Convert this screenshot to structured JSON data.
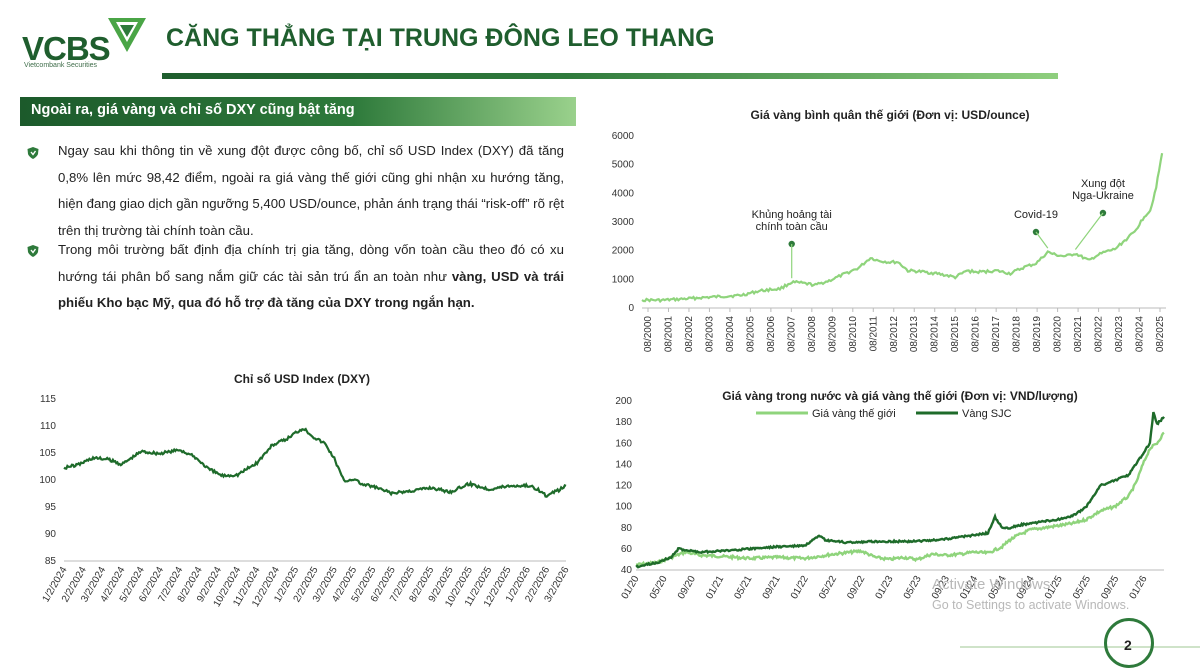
{
  "header": {
    "logo": "VCBS",
    "logo_sub": "Vietcombank Securities",
    "title": "CĂNG THẲNG TẠI TRUNG ĐÔNG LEO THANG"
  },
  "section": {
    "title": "Ngoài ra, giá vàng và chỉ số DXY cũng bật tăng",
    "para1": "Ngay sau khi thông tin về xung đột được công bố, chỉ số USD Index (DXY) đã tăng 0,8% lên mức 98,42 điểm, ngoài ra giá vàng thế giới cũng ghi nhận xu hướng tăng, hiện đang giao dịch gần ngưỡng 5,400 USD/ounce, phản ánh trạng thái “risk-off” rõ rệt trên thị trường tài chính toàn cầu.",
    "para2_a": "Trong môi trường bất định địa chính trị gia tăng, dòng vốn toàn cầu theo đó có xu hướng tái phân bổ sang nắm giữ các tài sản trú ẩn an toàn như ",
    "para2_b": "vàng, USD và trái phiếu Kho bạc Mỹ, qua đó hỗ trợ đà tăng của DXY trong ngắn hạn.",
    "bullet_icon": "shield-icon"
  },
  "colors": {
    "dark_green": "#1f5e2e",
    "light_green": "#8fd47c",
    "sjc_green": "#1e6b2a"
  },
  "chart_data": [
    {
      "id": "gold_world",
      "type": "line",
      "title": "Giá vàng bình quân thế giới (Đơn vị: USD/ounce)",
      "yticks": [
        0,
        1000,
        2000,
        3000,
        4000,
        5000,
        6000
      ],
      "ylim": [
        0,
        6000
      ],
      "xlabels": [
        "08/2000",
        "08/2001",
        "08/2002",
        "08/2003",
        "08/2004",
        "08/2005",
        "08/2006",
        "08/2007",
        "08/2008",
        "08/2009",
        "08/2010",
        "08/2011",
        "08/2012",
        "08/2013",
        "08/2014",
        "08/2015",
        "08/2016",
        "08/2017",
        "08/2018",
        "08/2019",
        "08/2020",
        "08/2021",
        "08/2022",
        "08/2023",
        "08/2024",
        "08/2025"
      ],
      "xlim": [
        2000.0,
        2026.6
      ],
      "x": [
        2000.0,
        2001.0,
        2002.0,
        2003.0,
        2004.0,
        2005.0,
        2006.0,
        2006.5,
        2007.0,
        2007.6,
        2008.0,
        2008.3,
        2008.8,
        2009.5,
        2010.0,
        2010.5,
        2011.0,
        2011.6,
        2012.0,
        2012.5,
        2013.0,
        2013.5,
        2014.0,
        2015.0,
        2015.9,
        2016.5,
        2017.0,
        2018.0,
        2018.7,
        2019.0,
        2019.5,
        2020.0,
        2020.6,
        2021.0,
        2021.5,
        2022.0,
        2022.7,
        2023.0,
        2023.5,
        2024.0,
        2024.5,
        2025.0,
        2025.5,
        2025.8,
        2026.1,
        2026.4
      ],
      "y": [
        280,
        270,
        310,
        360,
        400,
        440,
        600,
        640,
        670,
        900,
        880,
        850,
        800,
        950,
        1100,
        1250,
        1400,
        1750,
        1650,
        1600,
        1600,
        1300,
        1280,
        1200,
        1070,
        1300,
        1250,
        1300,
        1200,
        1300,
        1450,
        1550,
        1950,
        1850,
        1800,
        1900,
        1650,
        1800,
        1950,
        2050,
        2350,
        2650,
        3200,
        3400,
        4200,
        5400
      ],
      "annotations": [
        {
          "text": "Khủng hoảng tài chính toàn cầu",
          "x": 2007.6,
          "y": 900
        },
        {
          "text": "Covid-19",
          "x": 2020.6,
          "y": 1950
        },
        {
          "text": "Xung đột Nga-Ukraine",
          "x": 2022.0,
          "y": 1900
        }
      ]
    },
    {
      "id": "dxy",
      "type": "line",
      "title": "Chỉ số USD Index (DXY)",
      "yticks": [
        85,
        90,
        95,
        100,
        105,
        110,
        115
      ],
      "ylim": [
        85,
        115
      ],
      "xlabels": [
        "1/2/2024",
        "2/2/2024",
        "3/2/2024",
        "4/2/2024",
        "5/2/2024",
        "6/2/2024",
        "7/2/2024",
        "8/2/2024",
        "9/2/2024",
        "10/2/2024",
        "11/2/2024",
        "12/2/2024",
        "1/2/2025",
        "2/2/2025",
        "3/2/2025",
        "4/2/2025",
        "5/2/2025",
        "6/2/2025",
        "7/2/2025",
        "8/2/2025",
        "9/2/2025",
        "10/2/2025",
        "11/2/2025",
        "12/2/2025",
        "1/2/2026",
        "2/2/2026",
        "3/2/2026"
      ],
      "xlim": [
        0,
        26
      ],
      "x": [
        0,
        0.7,
        1.5,
        2.3,
        3,
        4,
        5,
        6,
        6.8,
        7.5,
        8.2,
        9,
        10,
        10.8,
        11.5,
        12,
        12.4,
        13,
        13.5,
        14,
        14.5,
        15,
        15.5,
        16,
        17,
        18,
        19,
        20,
        21,
        22,
        23,
        24,
        24.5,
        25,
        25.5,
        26
      ],
      "y": [
        102.3,
        102.8,
        104.1,
        103.8,
        102.9,
        105.3,
        104.9,
        105.6,
        104.2,
        102.0,
        100.8,
        101.0,
        103.2,
        106.5,
        107.5,
        108.8,
        109.6,
        107.8,
        106.8,
        104.0,
        99.8,
        100.2,
        99.1,
        98.8,
        97.5,
        98.0,
        98.6,
        97.8,
        99.3,
        98.3,
        98.9,
        99.0,
        98.4,
        97.0,
        97.9,
        98.9
      ]
    },
    {
      "id": "gold_domestic",
      "type": "line",
      "title": "Giá vàng trong nước và giá vàng thế giới (Đơn vị: VND/lượng)",
      "yticks": [
        40,
        60,
        80,
        100,
        120,
        140,
        160,
        180,
        200
      ],
      "ylim": [
        40,
        200
      ],
      "xlabels": [
        "01/20",
        "05/20",
        "09/20",
        "01/21",
        "05/21",
        "09/21",
        "01/22",
        "05/22",
        "09/22",
        "01/23",
        "05/23",
        "09/23",
        "01/24",
        "05/24",
        "09/24",
        "01/25",
        "05/25",
        "09/25",
        "01/26"
      ],
      "xlim": [
        0,
        75
      ],
      "series": [
        {
          "name": "Giá vàng thế giới",
          "color": "#8fd47c",
          "x": [
            0,
            3,
            5,
            7,
            9,
            12,
            16,
            20,
            24,
            28,
            32,
            34,
            36,
            38,
            40,
            42,
            44,
            46,
            48,
            50,
            52,
            53,
            54,
            56,
            58,
            60,
            62,
            64,
            66,
            68,
            70,
            71,
            72,
            73,
            74,
            75
          ],
          "y": [
            45,
            47,
            52,
            57,
            54,
            53,
            51,
            52,
            51,
            55,
            58,
            52,
            50,
            52,
            50,
            55,
            54,
            55,
            57,
            56,
            62,
            68,
            72,
            78,
            80,
            82,
            84,
            88,
            96,
            100,
            110,
            122,
            140,
            155,
            160,
            170
          ]
        },
        {
          "name": "Vàng SJC",
          "color": "#1e6b2a",
          "x": [
            0,
            3,
            5,
            6,
            9,
            12,
            16,
            20,
            24,
            26,
            27,
            30,
            34,
            38,
            42,
            46,
            50,
            51,
            52,
            53,
            54,
            56,
            58,
            60,
            62,
            64,
            66,
            68,
            70,
            71,
            72,
            73,
            73.5,
            74,
            75
          ],
          "y": [
            43,
            47,
            52,
            60,
            57,
            58,
            60,
            62,
            63,
            72,
            68,
            66,
            67,
            67,
            68,
            71,
            75,
            90,
            80,
            79,
            82,
            84,
            86,
            88,
            91,
            100,
            120,
            125,
            130,
            140,
            150,
            160,
            190,
            178,
            185
          ]
        }
      ]
    }
  ],
  "watermark": {
    "line1": "Activate Windows",
    "line2": "Go to Settings to activate Windows."
  },
  "page_number": "2"
}
